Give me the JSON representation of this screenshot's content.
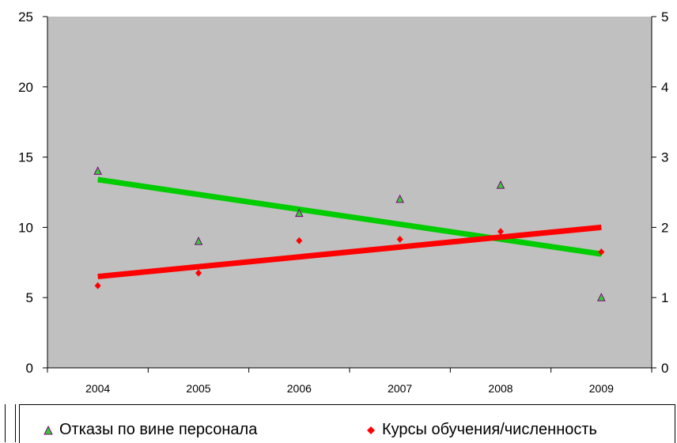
{
  "chart_data": {
    "type": "scatter",
    "categories": [
      "2004",
      "2005",
      "2006",
      "2007",
      "2008",
      "2009"
    ],
    "y_left": {
      "ylim": [
        0,
        25
      ],
      "ticks": [
        "0",
        "5",
        "10",
        "15",
        "20",
        "25"
      ]
    },
    "y_right": {
      "ylim": [
        0,
        5
      ],
      "ticks": [
        "0",
        "1",
        "2",
        "3",
        "4",
        "5"
      ]
    },
    "plot_background": "#c0c0c0",
    "grid": false,
    "legend_position": "bottom",
    "series": [
      {
        "name": "Отказы по вине персонала",
        "axis": "left",
        "marker": "triangle",
        "marker_color": "#800080",
        "marker_fill": "#33cc33",
        "values": [
          14,
          9,
          11,
          12,
          13,
          5
        ],
        "trendline": {
          "color": "#00cc00",
          "start": 13.4,
          "end": 8.1
        }
      },
      {
        "name": "Курсы обучения/численность",
        "axis": "right",
        "marker": "diamond",
        "marker_color": "#ff0000",
        "values": [
          1.17,
          1.35,
          1.81,
          1.83,
          1.94,
          1.65
        ],
        "trendline": {
          "color": "#ff0000",
          "start": 1.3,
          "end": 2.0
        }
      }
    ]
  }
}
